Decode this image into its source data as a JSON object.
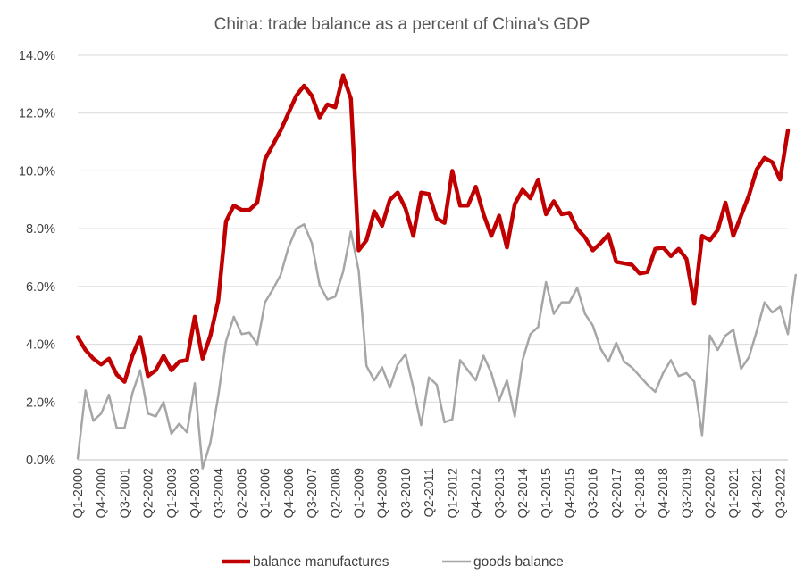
{
  "chart_data": {
    "type": "line",
    "title": "China: trade balance as a percent of China's GDP",
    "xlabel": "",
    "ylabel": "",
    "ylim": [
      0,
      14
    ],
    "yticks": [
      "0.0%",
      "2.0%",
      "4.0%",
      "6.0%",
      "8.0%",
      "10.0%",
      "12.0%",
      "14.0%"
    ],
    "xtick_labels": [
      "Q1-2000",
      "Q4-2000",
      "Q3-2001",
      "Q2-2002",
      "Q1-2003",
      "Q4-2003",
      "Q3-2004",
      "Q2-2005",
      "Q1-2006",
      "Q4-2006",
      "Q3-2007",
      "Q2-2008",
      "Q1-2009",
      "Q4-2009",
      "Q3-2010",
      "Q2-2011",
      "Q1-2012",
      "Q4-2012",
      "Q3-2013",
      "Q2-2014",
      "Q1-2015",
      "Q4-2015",
      "Q3-2016",
      "Q2-2017",
      "Q1-2018",
      "Q4-2018",
      "Q3-2019",
      "Q2-2020",
      "Q1-2021",
      "Q4-2021",
      "Q3-2022"
    ],
    "grid": "horizontal",
    "legend_position": "bottom",
    "x": {
      "start": "Q1-2000",
      "end": "Q1-2023",
      "frequency": "quarterly"
    },
    "series": [
      {
        "name": "balance manufactures",
        "color": "#c00000",
        "values": [
          4.25,
          3.8,
          3.5,
          3.3,
          3.5,
          2.95,
          2.7,
          3.6,
          4.25,
          2.9,
          3.1,
          3.6,
          3.1,
          3.4,
          3.45,
          4.95,
          3.5,
          4.3,
          5.5,
          8.25,
          8.8,
          8.65,
          8.65,
          8.9,
          10.4,
          10.9,
          11.4,
          12.0,
          12.6,
          12.95,
          12.6,
          11.85,
          12.3,
          12.2,
          13.3,
          12.5,
          7.25,
          7.6,
          8.6,
          8.1,
          9.0,
          9.25,
          8.7,
          7.75,
          9.25,
          9.2,
          8.35,
          8.2,
          10.0,
          8.8,
          8.8,
          9.45,
          8.5,
          7.75,
          8.45,
          7.35,
          8.85,
          9.35,
          9.05,
          9.7,
          8.5,
          8.95,
          8.5,
          8.55,
          8.0,
          7.7,
          7.25,
          7.5,
          7.8,
          6.85,
          6.8,
          6.75,
          6.45,
          6.5,
          7.3,
          7.35,
          7.05,
          7.3,
          6.95,
          5.4,
          7.75,
          7.6,
          7.95,
          8.9,
          7.75,
          8.45,
          9.15,
          10.05,
          10.45,
          10.3,
          9.7,
          11.4
        ]
      },
      {
        "name": "goods balance",
        "color": "#a6a6a6",
        "values": [
          0.05,
          2.4,
          1.35,
          1.6,
          2.25,
          1.1,
          1.1,
          2.3,
          3.1,
          1.6,
          1.5,
          2.0,
          0.9,
          1.25,
          0.95,
          2.65,
          -0.3,
          0.6,
          2.2,
          4.1,
          4.95,
          4.35,
          4.4,
          4.0,
          5.45,
          5.9,
          6.4,
          7.35,
          8.0,
          8.15,
          7.5,
          6.05,
          5.55,
          5.65,
          6.5,
          7.9,
          6.55,
          3.25,
          2.75,
          3.2,
          2.5,
          3.3,
          3.65,
          2.5,
          1.2,
          2.85,
          2.6,
          1.3,
          1.4,
          3.45,
          3.1,
          2.75,
          3.6,
          3.0,
          2.05,
          2.75,
          1.5,
          3.45,
          4.35,
          4.6,
          6.15,
          5.05,
          5.45,
          5.45,
          5.95,
          5.05,
          4.65,
          3.85,
          3.4,
          4.05,
          3.4,
          3.2,
          2.9,
          2.6,
          2.35,
          3.0,
          3.45,
          2.9,
          3.0,
          2.7,
          0.85,
          4.3,
          3.8,
          4.3,
          4.5,
          3.15,
          3.55,
          4.45,
          5.45,
          5.1,
          5.3,
          4.35,
          6.4
        ]
      }
    ]
  }
}
